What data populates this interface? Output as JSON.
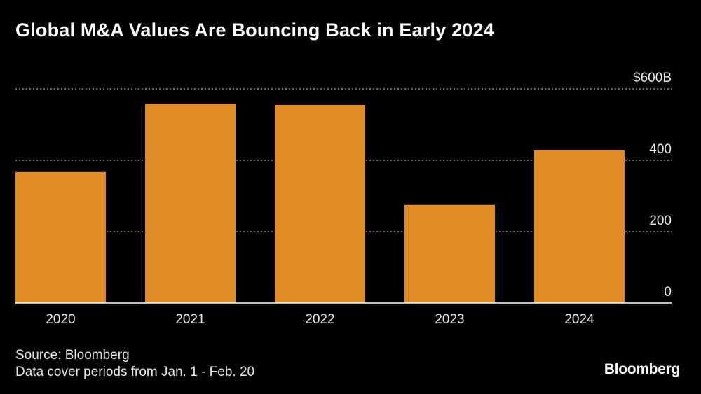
{
  "title": "Global M&A Values Are Bouncing Back in Early 2024",
  "footer": {
    "source": "Source: Bloomberg",
    "note": "Data cover periods from Jan. 1 - Feb. 20"
  },
  "logo": "Bloomberg",
  "colors": {
    "background": "#000000",
    "bar": "#E08B24",
    "grid": "#8a8a8a",
    "text": "#ffffff"
  },
  "chart_data": {
    "type": "bar",
    "categories": [
      "2020",
      "2021",
      "2022",
      "2023",
      "2024"
    ],
    "values": [
      367,
      558,
      555,
      275,
      428
    ],
    "ylim": [
      0,
      600
    ],
    "yticks": [
      0,
      200,
      400,
      600
    ],
    "ytick_labels": [
      "0",
      "200",
      "400",
      "$600B"
    ],
    "grid": true,
    "axis_side": "right"
  }
}
